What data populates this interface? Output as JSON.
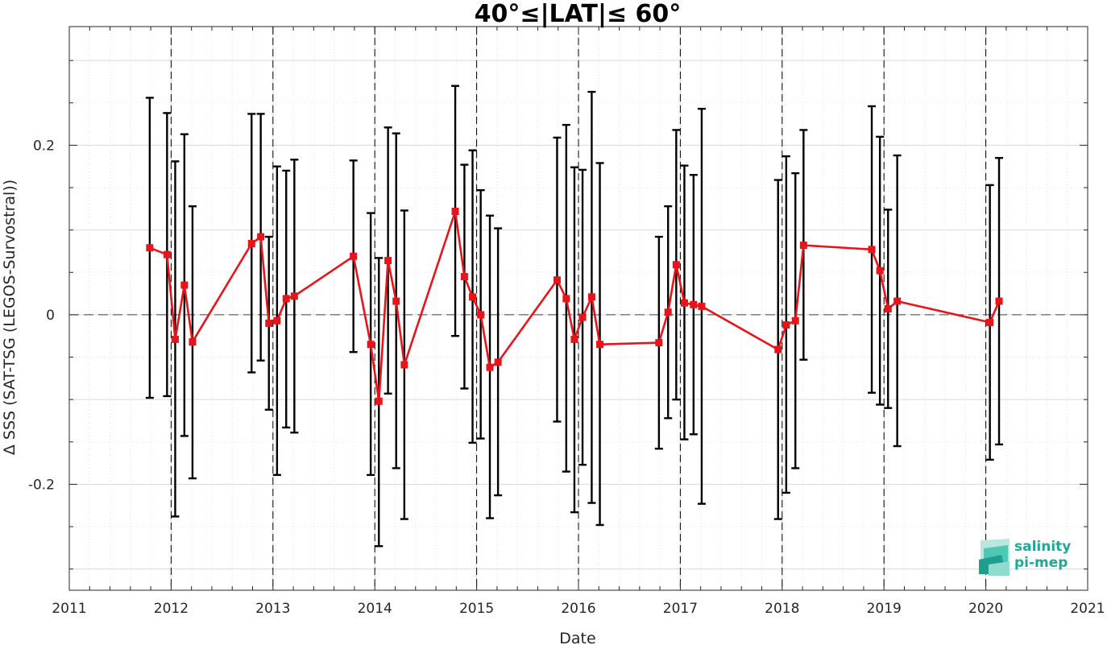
{
  "chart_data": {
    "type": "line",
    "title": "40°≤|LAT|≤ 60°",
    "xlabel": "Date",
    "ylabel": "Δ SSS (SAT-TSG (LEGOS-Survostral))",
    "xlim": [
      2011,
      2021
    ],
    "ylim": [
      -0.325,
      0.34
    ],
    "x_ticks": [
      2011,
      2012,
      2013,
      2014,
      2015,
      2016,
      2017,
      2018,
      2019,
      2020,
      2021
    ],
    "y_ticks": [
      -0.2,
      0,
      0.2
    ],
    "y_tick_labels": [
      "-0.2",
      "0",
      "0.2"
    ],
    "grid": true,
    "reference_line_y": 0,
    "year_dividers": [
      2012,
      2013,
      2014,
      2015,
      2016,
      2017,
      2018,
      2019,
      2020
    ],
    "colors": {
      "line": "#e8141b",
      "marker": "#e8141b",
      "errorbar": "#000000",
      "grid": "#d9d9d9"
    },
    "series": [
      {
        "points": [
          {
            "x": 2011.79,
            "y": 0.079,
            "lo": -0.098,
            "hi": 0.256
          },
          {
            "x": 2011.96,
            "y": 0.071,
            "lo": -0.096,
            "hi": 0.238
          },
          {
            "x": 2012.04,
            "y": -0.029,
            "lo": -0.238,
            "hi": 0.181
          },
          {
            "x": 2012.13,
            "y": 0.035,
            "lo": -0.143,
            "hi": 0.213
          },
          {
            "x": 2012.21,
            "y": -0.032,
            "lo": -0.193,
            "hi": 0.128
          },
          {
            "x": 2012.79,
            "y": 0.084,
            "lo": -0.068,
            "hi": 0.237
          },
          {
            "x": 2012.88,
            "y": 0.092,
            "lo": -0.054,
            "hi": 0.237
          },
          {
            "x": 2012.96,
            "y": -0.01,
            "lo": -0.112,
            "hi": 0.092
          },
          {
            "x": 2013.04,
            "y": -0.007,
            "lo": -0.189,
            "hi": 0.175
          },
          {
            "x": 2013.13,
            "y": 0.019,
            "lo": -0.133,
            "hi": 0.17
          },
          {
            "x": 2013.21,
            "y": 0.022,
            "lo": -0.139,
            "hi": 0.183
          },
          {
            "x": 2013.79,
            "y": 0.069,
            "lo": -0.044,
            "hi": 0.182
          },
          {
            "x": 2013.96,
            "y": -0.035,
            "lo": -0.189,
            "hi": 0.12
          },
          {
            "x": 2014.04,
            "y": -0.102,
            "lo": -0.273,
            "hi": 0.067
          },
          {
            "x": 2014.13,
            "y": 0.064,
            "lo": -0.093,
            "hi": 0.221
          },
          {
            "x": 2014.21,
            "y": 0.016,
            "lo": -0.181,
            "hi": 0.214
          },
          {
            "x": 2014.29,
            "y": -0.059,
            "lo": -0.241,
            "hi": 0.123
          },
          {
            "x": 2014.79,
            "y": 0.122,
            "lo": -0.025,
            "hi": 0.27
          },
          {
            "x": 2014.88,
            "y": 0.045,
            "lo": -0.087,
            "hi": 0.177
          },
          {
            "x": 2014.96,
            "y": 0.021,
            "lo": -0.151,
            "hi": 0.194
          },
          {
            "x": 2015.04,
            "y": 0.0,
            "lo": -0.146,
            "hi": 0.147
          },
          {
            "x": 2015.13,
            "y": -0.062,
            "lo": -0.24,
            "hi": 0.117
          },
          {
            "x": 2015.21,
            "y": -0.056,
            "lo": -0.213,
            "hi": 0.102
          },
          {
            "x": 2015.79,
            "y": 0.041,
            "lo": -0.126,
            "hi": 0.209
          },
          {
            "x": 2015.88,
            "y": 0.019,
            "lo": -0.185,
            "hi": 0.224
          },
          {
            "x": 2015.96,
            "y": -0.029,
            "lo": -0.233,
            "hi": 0.174
          },
          {
            "x": 2016.04,
            "y": -0.003,
            "lo": -0.177,
            "hi": 0.171
          },
          {
            "x": 2016.13,
            "y": 0.021,
            "lo": -0.222,
            "hi": 0.263
          },
          {
            "x": 2016.21,
            "y": -0.035,
            "lo": -0.248,
            "hi": 0.179
          },
          {
            "x": 2016.79,
            "y": -0.033,
            "lo": -0.158,
            "hi": 0.092
          },
          {
            "x": 2016.88,
            "y": 0.003,
            "lo": -0.122,
            "hi": 0.128
          },
          {
            "x": 2016.96,
            "y": 0.059,
            "lo": -0.1,
            "hi": 0.218
          },
          {
            "x": 2017.04,
            "y": 0.014,
            "lo": -0.147,
            "hi": 0.176
          },
          {
            "x": 2017.13,
            "y": 0.012,
            "lo": -0.141,
            "hi": 0.165
          },
          {
            "x": 2017.21,
            "y": 0.01,
            "lo": -0.223,
            "hi": 0.243
          },
          {
            "x": 2017.96,
            "y": -0.041,
            "lo": -0.241,
            "hi": 0.159
          },
          {
            "x": 2018.04,
            "y": -0.012,
            "lo": -0.21,
            "hi": 0.187
          },
          {
            "x": 2018.13,
            "y": -0.007,
            "lo": -0.181,
            "hi": 0.167
          },
          {
            "x": 2018.21,
            "y": 0.082,
            "lo": -0.053,
            "hi": 0.218
          },
          {
            "x": 2018.88,
            "y": 0.077,
            "lo": -0.092,
            "hi": 0.246
          },
          {
            "x": 2018.96,
            "y": 0.052,
            "lo": -0.106,
            "hi": 0.21
          },
          {
            "x": 2019.04,
            "y": 0.007,
            "lo": -0.11,
            "hi": 0.124
          },
          {
            "x": 2019.13,
            "y": 0.016,
            "lo": -0.155,
            "hi": 0.188
          },
          {
            "x": 2020.04,
            "y": -0.009,
            "lo": -0.171,
            "hi": 0.153
          },
          {
            "x": 2020.13,
            "y": 0.016,
            "lo": -0.153,
            "hi": 0.185
          }
        ]
      }
    ]
  },
  "logo": {
    "line1": "salinity",
    "line2": "pi-mep"
  }
}
